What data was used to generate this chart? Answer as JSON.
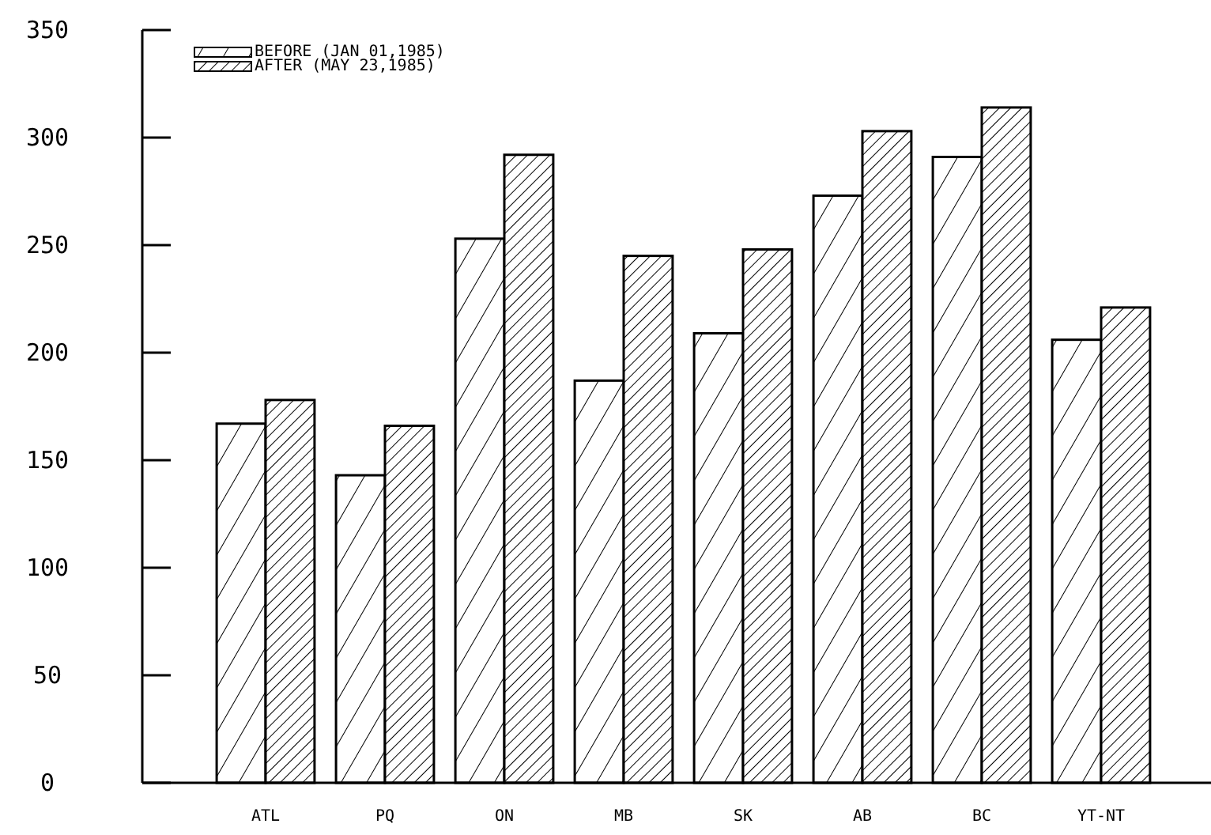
{
  "chart_data": {
    "type": "bar",
    "categories": [
      "ATL",
      "PQ",
      "ON",
      "MB",
      "SK",
      "AB",
      "BC",
      "YT-NT"
    ],
    "series": [
      {
        "name": "BEFORE (JAN 01,1985)",
        "color": "#000000",
        "values": [
          167,
          143,
          253,
          187,
          209,
          273,
          291,
          206
        ]
      },
      {
        "name": "AFTER (MAY 23,1985)",
        "color": "#000000",
        "values": [
          178,
          166,
          292,
          245,
          248,
          303,
          314,
          221
        ]
      }
    ],
    "ylim": [
      0,
      350
    ],
    "yticks": [
      0,
      50,
      100,
      150,
      200,
      250,
      300,
      350
    ],
    "grid": false,
    "legend": "top left"
  }
}
